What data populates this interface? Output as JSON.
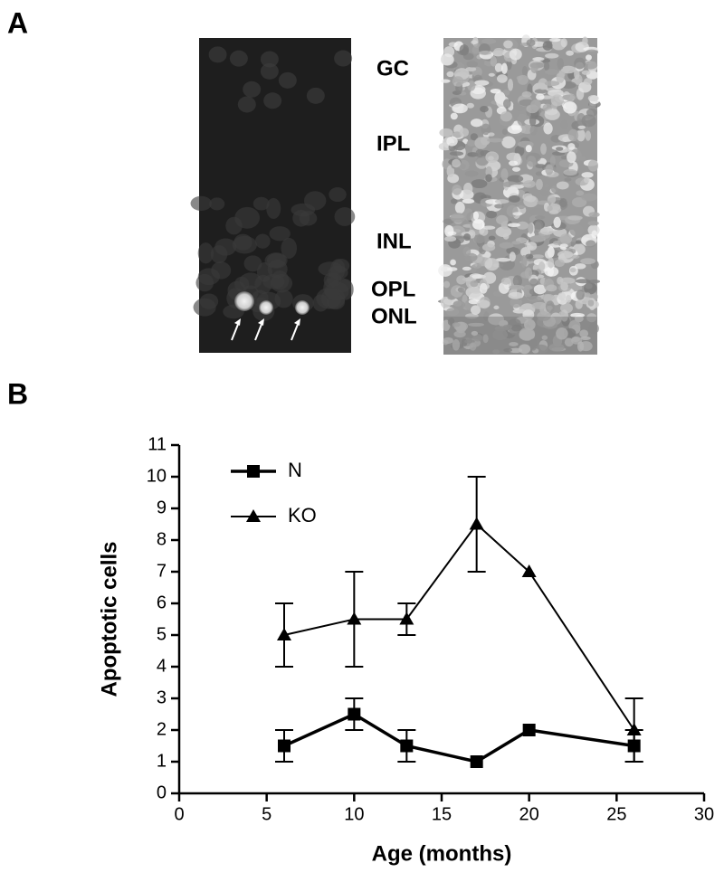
{
  "panel_a": {
    "label": "A",
    "layers": [
      "GC",
      "IPL",
      "INL",
      "OPL",
      "ONL"
    ]
  },
  "panel_b": {
    "label": "B"
  },
  "chart_data": {
    "type": "line",
    "x": [
      6,
      10,
      13,
      17,
      20,
      26
    ],
    "series": [
      {
        "name": "N",
        "color": "#000000",
        "marker": "square",
        "line_width": 3.5,
        "values": [
          1.5,
          2.5,
          1.5,
          1,
          2,
          1.5
        ],
        "errors": [
          0.5,
          0.5,
          0.5,
          0,
          0,
          0.5
        ]
      },
      {
        "name": "KO",
        "color": "#000000",
        "marker": "triangle",
        "line_width": 2,
        "values": [
          5,
          5.5,
          5.5,
          8.5,
          7,
          2
        ],
        "errors": [
          1,
          1.5,
          0.5,
          1.5,
          0,
          1
        ]
      }
    ],
    "xlabel": "Age (months)",
    "ylabel": "Apoptotic cells",
    "xlim": [
      0,
      30
    ],
    "xticks": [
      0,
      5,
      10,
      15,
      20,
      25,
      30
    ],
    "ylim": [
      0,
      11
    ],
    "yticks": [
      0,
      1,
      2,
      3,
      4,
      5,
      6,
      7,
      8,
      9,
      10,
      11
    ],
    "grid": false,
    "legend": "upper left"
  }
}
